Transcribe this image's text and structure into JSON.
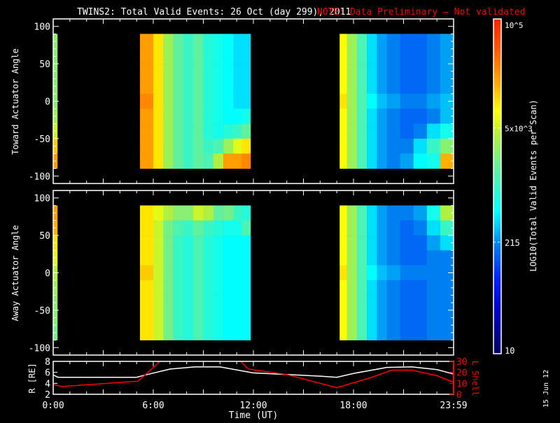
{
  "title": {
    "main": "TWINS2: Total Valid Events: 26 Oct (day 299), 2011",
    "note": "NOTE: Data Preliminary — Not validated",
    "note_color": "#ff0000"
  },
  "footer_date": "15 Jun 12",
  "colorbar": {
    "label": "LOG10(Total Valid Events per Scan)",
    "range_log10": [
      1,
      5
    ],
    "tick_labels": [
      "10",
      "215",
      "5x10^3",
      "10^5"
    ],
    "tick_values": [
      10,
      215,
      5000,
      100000
    ],
    "colormap": "rainbow (dark blue → cyan → yellow → red)"
  },
  "chart_data": [
    {
      "type": "heatmap",
      "ylabel": "Toward Actuator Angle",
      "ylim": [
        -110,
        110
      ],
      "yticks": [
        100,
        50,
        0,
        -50,
        -100
      ],
      "xlim_hours": [
        0,
        24
      ],
      "angle_bins": [
        80,
        60,
        40,
        20,
        0,
        -20,
        -40,
        -60,
        -80
      ],
      "value_units": "log10 counts",
      "segments": [
        {
          "time_edges": [
            0,
            0.25
          ],
          "rows": [
            [
              3.4
            ],
            [
              3.4
            ],
            [
              3.4
            ],
            [
              3.4
            ],
            [
              3.4
            ],
            [
              3.5
            ],
            [
              3.7
            ],
            [
              4.1
            ],
            [
              4.3
            ]
          ]
        },
        {
          "time_edges": [
            5.2,
            6.0,
            6.6,
            7.2,
            7.8,
            8.4,
            9.0,
            9.6,
            10.2,
            10.8,
            11.3,
            11.83
          ],
          "rows": [
            [
              4.3,
              4.0,
              3.5,
              3.2,
              3.0,
              3.2,
              2.9,
              2.8,
              2.7,
              2.6,
              2.6
            ],
            [
              4.3,
              4.0,
              3.5,
              3.2,
              3.0,
              3.2,
              2.9,
              2.8,
              2.7,
              2.6,
              2.6
            ],
            [
              4.3,
              4.0,
              3.5,
              3.2,
              3.0,
              3.2,
              2.9,
              2.8,
              2.7,
              2.6,
              2.6
            ],
            [
              4.3,
              4.0,
              3.5,
              3.2,
              3.0,
              3.2,
              2.9,
              2.8,
              2.7,
              2.6,
              2.6
            ],
            [
              4.4,
              4.0,
              3.5,
              3.2,
              3.0,
              3.2,
              2.9,
              2.8,
              2.7,
              2.6,
              2.6
            ],
            [
              4.3,
              4.0,
              3.5,
              3.2,
              3.0,
              3.2,
              2.9,
              2.8,
              2.7,
              2.7,
              2.8
            ],
            [
              4.3,
              4.0,
              3.5,
              3.2,
              3.0,
              3.2,
              2.9,
              2.8,
              2.9,
              3.0,
              3.2
            ],
            [
              4.3,
              4.0,
              3.5,
              3.2,
              3.0,
              3.2,
              3.0,
              3.1,
              3.5,
              3.8,
              4.0
            ],
            [
              4.3,
              4.0,
              3.5,
              3.2,
              3.0,
              3.2,
              3.1,
              3.6,
              4.3,
              4.3,
              4.4
            ]
          ]
        },
        {
          "time_edges": [
            17.17,
            17.6,
            18.2,
            18.8,
            19.4,
            20.0,
            20.8,
            21.6,
            22.4,
            23.2,
            24.0
          ],
          "rows": [
            [
              3.9,
              3.5,
              3.1,
              2.6,
              2.4,
              2.3,
              2.2,
              2.2,
              2.3,
              2.4
            ],
            [
              3.9,
              3.5,
              3.1,
              2.6,
              2.4,
              2.3,
              2.2,
              2.2,
              2.3,
              2.4
            ],
            [
              3.9,
              3.5,
              3.1,
              2.6,
              2.4,
              2.3,
              2.2,
              2.2,
              2.3,
              2.4
            ],
            [
              3.9,
              3.5,
              3.1,
              2.6,
              2.4,
              2.3,
              2.2,
              2.2,
              2.3,
              2.4
            ],
            [
              4.0,
              3.5,
              3.1,
              2.7,
              2.5,
              2.4,
              2.3,
              2.3,
              2.4,
              2.5
            ],
            [
              3.9,
              3.5,
              3.1,
              2.6,
              2.4,
              2.3,
              2.2,
              2.2,
              2.3,
              2.5
            ],
            [
              3.9,
              3.5,
              3.1,
              2.6,
              2.4,
              2.3,
              2.2,
              2.3,
              2.6,
              2.8
            ],
            [
              3.9,
              3.5,
              3.1,
              2.6,
              2.4,
              2.3,
              2.3,
              2.6,
              3.0,
              3.4
            ],
            [
              3.9,
              3.5,
              3.1,
              2.6,
              2.4,
              2.3,
              2.4,
              2.7,
              2.8,
              4.2
            ]
          ]
        }
      ]
    },
    {
      "type": "heatmap",
      "ylabel": "Away Actuator Angle",
      "ylim": [
        -110,
        110
      ],
      "yticks": [
        100,
        50,
        0,
        -50,
        -100
      ],
      "xlim_hours": [
        0,
        24
      ],
      "angle_bins": [
        80,
        60,
        40,
        20,
        0,
        -20,
        -40,
        -60,
        -80
      ],
      "value_units": "log10 counts",
      "segments": [
        {
          "time_edges": [
            0,
            0.25
          ],
          "rows": [
            [
              4.3
            ],
            [
              4.2
            ],
            [
              4.0
            ],
            [
              3.8
            ],
            [
              3.6
            ],
            [
              3.5
            ],
            [
              3.4
            ],
            [
              3.4
            ],
            [
              3.3
            ]
          ]
        },
        {
          "time_edges": [
            5.2,
            6.0,
            6.6,
            7.2,
            7.8,
            8.4,
            9.0,
            9.6,
            10.2,
            10.8,
            11.3,
            11.83
          ],
          "rows": [
            [
              4.0,
              3.8,
              3.6,
              3.4,
              3.4,
              3.7,
              3.6,
              3.2,
              3.3,
              3.0,
              2.9
            ],
            [
              4.0,
              3.7,
              3.3,
              3.1,
              3.0,
              3.2,
              3.0,
              2.9,
              2.8,
              2.8,
              3.1
            ],
            [
              4.0,
              3.7,
              3.3,
              3.0,
              2.9,
              3.1,
              2.9,
              2.8,
              2.7,
              2.7,
              2.7
            ],
            [
              4.0,
              3.7,
              3.3,
              3.0,
              2.9,
              3.1,
              2.9,
              2.8,
              2.7,
              2.7,
              2.7
            ],
            [
              4.1,
              3.7,
              3.3,
              3.0,
              2.9,
              3.1,
              2.9,
              2.8,
              2.7,
              2.7,
              2.7
            ],
            [
              4.0,
              3.7,
              3.3,
              3.0,
              2.9,
              3.1,
              2.9,
              2.8,
              2.7,
              2.7,
              2.7
            ],
            [
              4.0,
              3.7,
              3.3,
              3.0,
              2.9,
              3.1,
              2.9,
              2.8,
              2.7,
              2.7,
              2.7
            ],
            [
              4.0,
              3.7,
              3.3,
              3.0,
              2.9,
              3.1,
              2.9,
              2.8,
              2.7,
              2.7,
              2.7
            ],
            [
              4.0,
              3.7,
              3.3,
              3.0,
              2.9,
              3.1,
              2.9,
              2.8,
              2.7,
              2.7,
              2.7
            ]
          ]
        },
        {
          "time_edges": [
            17.17,
            17.6,
            18.2,
            18.8,
            19.4,
            20.0,
            20.8,
            21.6,
            22.4,
            23.2,
            24.0
          ],
          "rows": [
            [
              3.9,
              3.5,
              3.1,
              2.6,
              2.4,
              2.3,
              2.3,
              2.4,
              2.8,
              3.6
            ],
            [
              3.9,
              3.5,
              3.1,
              2.6,
              2.4,
              2.3,
              2.2,
              2.3,
              2.6,
              3.0
            ],
            [
              3.9,
              3.5,
              3.1,
              2.6,
              2.4,
              2.3,
              2.2,
              2.2,
              2.4,
              2.6
            ],
            [
              3.9,
              3.5,
              3.1,
              2.6,
              2.4,
              2.3,
              2.2,
              2.2,
              2.3,
              2.3
            ],
            [
              4.0,
              3.5,
              3.1,
              2.7,
              2.5,
              2.4,
              2.3,
              2.3,
              2.3,
              2.3
            ],
            [
              3.9,
              3.5,
              3.1,
              2.6,
              2.4,
              2.3,
              2.2,
              2.2,
              2.3,
              2.3
            ],
            [
              3.9,
              3.5,
              3.1,
              2.6,
              2.4,
              2.3,
              2.2,
              2.2,
              2.3,
              2.3
            ],
            [
              3.9,
              3.5,
              3.1,
              2.6,
              2.4,
              2.3,
              2.2,
              2.2,
              2.3,
              2.3
            ],
            [
              3.9,
              3.5,
              3.1,
              2.6,
              2.4,
              2.3,
              2.2,
              2.2,
              2.3,
              2.3
            ]
          ]
        }
      ]
    },
    {
      "type": "line",
      "xlabel": "Time (UT)",
      "xtick_labels": [
        "0:00",
        "6:00",
        "12:00",
        "18:00",
        "23:59"
      ],
      "xticks_hours": [
        0,
        6,
        12,
        18,
        24
      ],
      "left_axis": {
        "label": "R [RE]",
        "ylim": [
          2,
          8
        ],
        "ticks": [
          2,
          4,
          6,
          8
        ],
        "color": "#ffffff"
      },
      "right_axis": {
        "label": "L Shell",
        "ylim": [
          0,
          30
        ],
        "ticks": [
          0,
          10,
          20,
          30
        ],
        "color": "#ff0000"
      },
      "series": [
        {
          "axis": "left",
          "color": "#ffffff",
          "x": [
            0,
            0.3,
            5.0,
            5.5,
            7.0,
            8.5,
            10.0,
            12.0,
            14.0,
            16.0,
            17.0,
            18.0,
            20.0,
            21.5,
            23.0,
            24.0
          ],
          "y": [
            5.5,
            5.1,
            5.1,
            5.5,
            6.6,
            7.0,
            7.0,
            5.9,
            5.6,
            5.3,
            5.1,
            5.8,
            6.9,
            7.0,
            6.5,
            5.7
          ]
        },
        {
          "axis": "right",
          "color": "#ff0000",
          "x": [
            0,
            0.5,
            5.1,
            6.4
          ],
          "y": [
            9,
            7,
            12,
            30
          ]
        },
        {
          "axis": "right",
          "color": "#ff0000",
          "x": [
            11.25,
            11.7,
            14.0,
            17.0,
            19.0,
            20.3,
            21.5,
            23.0,
            24.0
          ],
          "y": [
            30,
            23,
            18,
            6,
            15,
            22,
            22,
            17,
            11
          ]
        }
      ]
    }
  ]
}
